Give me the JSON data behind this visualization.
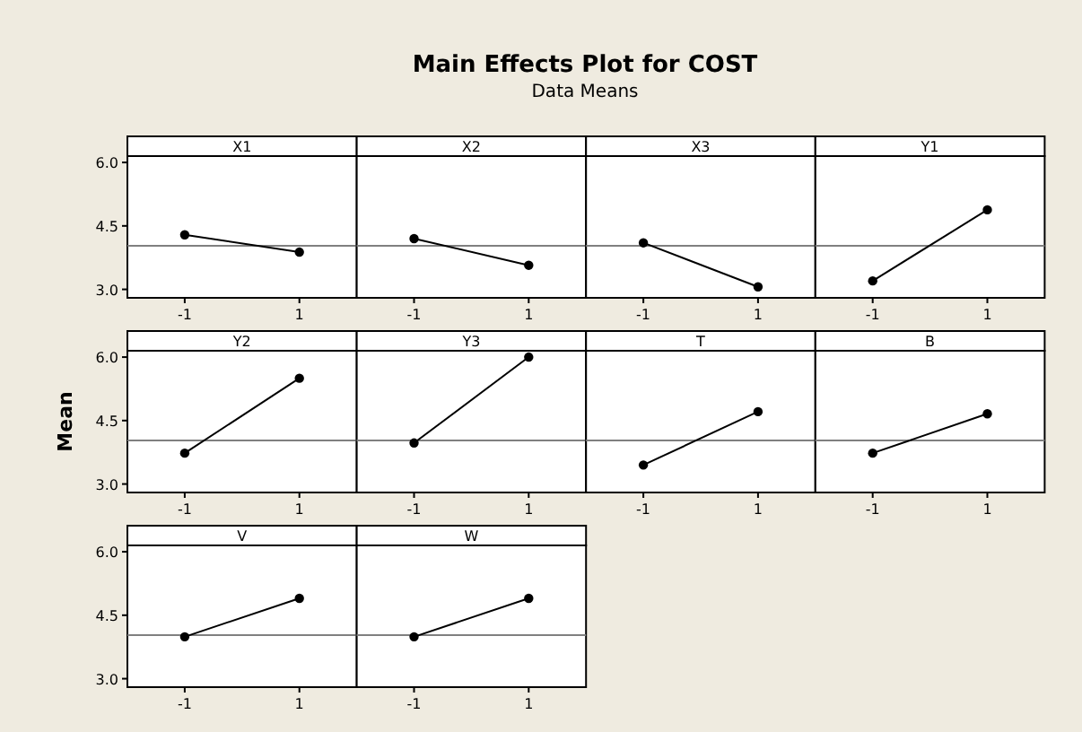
{
  "chart_data": [
    {
      "type": "other",
      "title": "Main Effects Plot for COST",
      "subtitle": "Data Means"
    },
    {
      "type": "line",
      "annotations": [
        "X1"
      ],
      "categories": [
        "-1",
        "1"
      ],
      "series": [
        {
          "color": "#000000",
          "values": [
            4.29,
            3.88
          ]
        }
      ],
      "ylim": [
        2.8,
        6.15
      ],
      "yticks": [
        {
          "value": 3,
          "label": "3.0"
        },
        {
          "value": 4.5,
          "label": "4.5"
        },
        {
          "value": 6,
          "label": "6.0"
        }
      ],
      "ref_lines": [
        {
          "axis": "y",
          "value": 4.03,
          "color": "#808080"
        }
      ],
      "marker": "circle"
    },
    {
      "type": "line",
      "annotations": [
        "X2"
      ],
      "categories": [
        "-1",
        "1"
      ],
      "series": [
        {
          "color": "#000000",
          "values": [
            4.2,
            3.57
          ]
        }
      ],
      "ylim": [
        2.8,
        6.15
      ],
      "ref_lines": [
        {
          "axis": "y",
          "value": 4.03,
          "color": "#808080"
        }
      ],
      "marker": "circle",
      "tick_labels": "x"
    },
    {
      "type": "line",
      "annotations": [
        "X3"
      ],
      "categories": [
        "-1",
        "1"
      ],
      "series": [
        {
          "color": "#000000",
          "values": [
            4.1,
            3.06
          ]
        }
      ],
      "ylim": [
        2.8,
        6.15
      ],
      "ref_lines": [
        {
          "axis": "y",
          "value": 4.03,
          "color": "#808080"
        }
      ],
      "marker": "circle",
      "tick_labels": "x"
    },
    {
      "type": "line",
      "annotations": [
        "Y1"
      ],
      "categories": [
        "-1",
        "1"
      ],
      "series": [
        {
          "color": "#000000",
          "values": [
            3.2,
            4.88
          ]
        }
      ],
      "ylim": [
        2.8,
        6.15
      ],
      "ref_lines": [
        {
          "axis": "y",
          "value": 4.03,
          "color": "#808080"
        }
      ],
      "marker": "circle",
      "tick_labels": "x"
    },
    {
      "type": "line",
      "ylabel": "Mean",
      "annotations": [
        "Y2"
      ],
      "categories": [
        "-1",
        "1"
      ],
      "series": [
        {
          "color": "#000000",
          "values": [
            3.73,
            5.5
          ]
        }
      ],
      "ylim": [
        2.8,
        6.15
      ],
      "yticks": [
        {
          "value": 3,
          "label": "3.0"
        },
        {
          "value": 4.5,
          "label": "4.5"
        },
        {
          "value": 6,
          "label": "6.0"
        }
      ],
      "ref_lines": [
        {
          "axis": "y",
          "value": 4.03,
          "color": "#808080"
        }
      ],
      "marker": "circle"
    },
    {
      "type": "line",
      "annotations": [
        "Y3"
      ],
      "categories": [
        "-1",
        "1"
      ],
      "series": [
        {
          "color": "#000000",
          "values": [
            3.97,
            6.0
          ]
        }
      ],
      "ylim": [
        2.8,
        6.15
      ],
      "ref_lines": [
        {
          "axis": "y",
          "value": 4.03,
          "color": "#808080"
        }
      ],
      "marker": "circle",
      "tick_labels": "x"
    },
    {
      "type": "line",
      "annotations": [
        "T"
      ],
      "categories": [
        "-1",
        "1"
      ],
      "series": [
        {
          "color": "#000000",
          "values": [
            3.45,
            4.71
          ]
        }
      ],
      "ylim": [
        2.8,
        6.15
      ],
      "ref_lines": [
        {
          "axis": "y",
          "value": 4.03,
          "color": "#808080"
        }
      ],
      "marker": "circle",
      "tick_labels": "x"
    },
    {
      "type": "line",
      "annotations": [
        "B"
      ],
      "categories": [
        "-1",
        "1"
      ],
      "series": [
        {
          "color": "#000000",
          "values": [
            3.73,
            4.66
          ]
        }
      ],
      "ylim": [
        2.8,
        6.15
      ],
      "ref_lines": [
        {
          "axis": "y",
          "value": 4.03,
          "color": "#808080"
        }
      ],
      "marker": "circle",
      "tick_labels": "x"
    },
    {
      "type": "line",
      "annotations": [
        "V"
      ],
      "categories": [
        "-1",
        "1"
      ],
      "series": [
        {
          "color": "#000000",
          "values": [
            3.99,
            4.9
          ]
        }
      ],
      "ylim": [
        2.8,
        6.15
      ],
      "yticks": [
        {
          "value": 3,
          "label": "3.0"
        },
        {
          "value": 4.5,
          "label": "4.5"
        },
        {
          "value": 6,
          "label": "6.0"
        }
      ],
      "ref_lines": [
        {
          "axis": "y",
          "value": 4.03,
          "color": "#808080"
        }
      ],
      "marker": "circle"
    },
    {
      "type": "line",
      "annotations": [
        "W"
      ],
      "categories": [
        "-1",
        "1"
      ],
      "series": [
        {
          "color": "#000000",
          "values": [
            3.99,
            4.9
          ]
        }
      ],
      "ylim": [
        2.8,
        6.15
      ],
      "ref_lines": [
        {
          "axis": "y",
          "value": 4.03,
          "color": "#808080"
        }
      ],
      "marker": "circle",
      "tick_labels": "x"
    }
  ]
}
